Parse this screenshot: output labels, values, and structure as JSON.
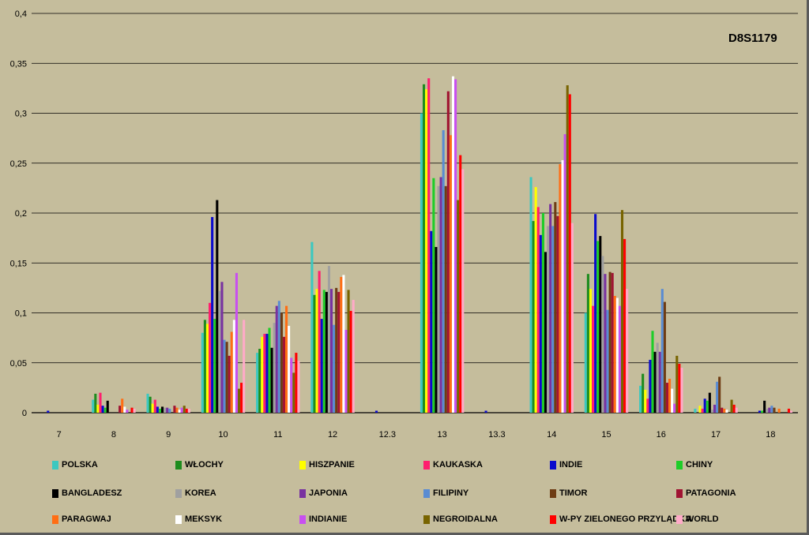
{
  "chart_data": {
    "type": "bar",
    "title": "D8S1179",
    "xlabel": "",
    "ylabel": "",
    "ylim": [
      0,
      0.4
    ],
    "y_ticks": [
      "0",
      "0,05",
      "0,1",
      "0,15",
      "0,2",
      "0,25",
      "0,3",
      "0,35",
      "0,4"
    ],
    "grid": true,
    "legend_position": "bottom",
    "categories": [
      "7",
      "8",
      "9",
      "10",
      "11",
      "12",
      "12.3",
      "13",
      "13.3",
      "14",
      "15",
      "16",
      "17",
      "18"
    ],
    "series": [
      {
        "name": "POLSKA",
        "color": "#3cc8c0",
        "values": [
          0,
          0.013,
          0.019,
          0.08,
          0.06,
          0.171,
          0,
          0.3,
          0,
          0.236,
          0.1,
          0.027,
          0.004,
          0
        ]
      },
      {
        "name": "WŁOCHY",
        "color": "#1e8c1e",
        "values": [
          0,
          0.019,
          0.016,
          0.093,
          0.064,
          0.118,
          0,
          0.329,
          0,
          0.192,
          0.139,
          0.039,
          0,
          0
        ]
      },
      {
        "name": "HISZPANIE",
        "color": "#ffff00",
        "values": [
          0,
          0.008,
          0.009,
          0.089,
          0.076,
          0.124,
          0,
          0.324,
          0,
          0.226,
          0.124,
          0.023,
          0.007,
          0
        ]
      },
      {
        "name": "KAUKASKA",
        "color": "#ff1e6e",
        "values": [
          0,
          0.02,
          0.013,
          0.11,
          0.079,
          0.142,
          0,
          0.335,
          0,
          0.206,
          0.107,
          0.014,
          0.004,
          0
        ]
      },
      {
        "name": "INDIE",
        "color": "#0a0acd",
        "values": [
          0.002,
          0.007,
          0.006,
          0.196,
          0.079,
          0.094,
          0.002,
          0.182,
          0.002,
          0.178,
          0.199,
          0.053,
          0.014,
          0.002
        ]
      },
      {
        "name": "CHINY",
        "color": "#1ecd28",
        "values": [
          0,
          0.005,
          0.004,
          0.094,
          0.085,
          0.123,
          0,
          0.235,
          0,
          0.2,
          0.172,
          0.082,
          0.012,
          0.002
        ]
      },
      {
        "name": "BANGLADESZ",
        "color": "#000000",
        "values": [
          0,
          0.012,
          0.006,
          0.213,
          0.065,
          0.121,
          0,
          0.166,
          0,
          0.161,
          0.177,
          0.061,
          0.02,
          0.012
        ]
      },
      {
        "name": "KOREA",
        "color": "#a0a0a0",
        "values": [
          0,
          0,
          0.005,
          0.122,
          0.09,
          0.147,
          0,
          0.227,
          0,
          0.187,
          0.157,
          0.07,
          0.003,
          0.004
        ]
      },
      {
        "name": "JAPONIA",
        "color": "#7832a0",
        "values": [
          0,
          0,
          0.005,
          0.131,
          0.107,
          0.124,
          0,
          0.236,
          0,
          0.209,
          0.139,
          0.061,
          0.008,
          0.005
        ]
      },
      {
        "name": "FILIPINY",
        "color": "#5a8cd2",
        "values": [
          0,
          0,
          0.004,
          0.073,
          0.112,
          0.088,
          0,
          0.283,
          0,
          0.187,
          0.103,
          0.124,
          0.031,
          0.007
        ]
      },
      {
        "name": "TIMOR",
        "color": "#6e3c14",
        "values": [
          0,
          0,
          0,
          0.071,
          0.1,
          0.125,
          0,
          0.227,
          0,
          0.211,
          0.141,
          0.111,
          0.036,
          0.005
        ]
      },
      {
        "name": "PATAGONIA",
        "color": "#a01432",
        "values": [
          0,
          0.007,
          0.007,
          0.057,
          0.076,
          0.121,
          0,
          0.322,
          0,
          0.197,
          0.14,
          0.03,
          0.005,
          0
        ]
      },
      {
        "name": "PARAGWAJ",
        "color": "#ff6e14",
        "values": [
          0,
          0.014,
          0.005,
          0.081,
          0.107,
          0.136,
          0,
          0.278,
          0,
          0.249,
          0.117,
          0.034,
          0.004,
          0.004
        ]
      },
      {
        "name": "MEKSYK",
        "color": "#ffffff",
        "values": [
          0,
          0.006,
          0.003,
          0.093,
          0.087,
          0.138,
          0,
          0.337,
          0,
          0.253,
          0.115,
          0.024,
          0.003,
          0
        ]
      },
      {
        "name": "INDIANIE",
        "color": "#c850f0",
        "values": [
          0,
          0.003,
          0.005,
          0.14,
          0.055,
          0.083,
          0,
          0.334,
          0,
          0.279,
          0.107,
          0.009,
          0,
          0
        ]
      },
      {
        "name": "NEGROIDALNA",
        "color": "#786400",
        "values": [
          0,
          0,
          0.007,
          0.024,
          0.04,
          0.123,
          0,
          0.213,
          0,
          0.328,
          0.203,
          0.057,
          0.013,
          0
        ]
      },
      {
        "name": "W-PY ZIELONEGO PRZYLĄDKA",
        "color": "#ff0000",
        "values": [
          0,
          0.005,
          0.004,
          0.03,
          0.06,
          0.102,
          0,
          0.258,
          0,
          0.319,
          0.174,
          0.049,
          0.008,
          0.004
        ]
      },
      {
        "name": "WORLD",
        "color": "#ffaac8",
        "values": [
          0,
          0.004,
          0.004,
          0.093,
          0.052,
          0.113,
          0,
          0.244,
          0,
          0.19,
          0.124,
          0.045,
          0.005,
          0.002
        ]
      }
    ]
  }
}
